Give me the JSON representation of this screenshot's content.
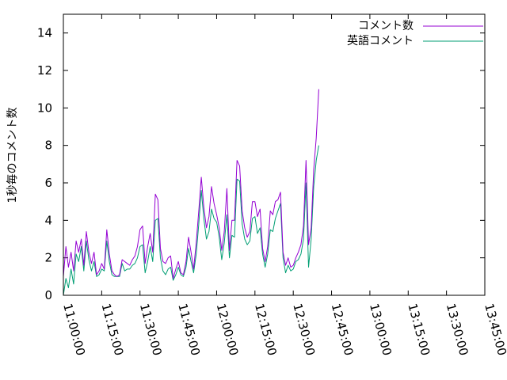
{
  "chart_data": {
    "type": "line",
    "title": "",
    "xlabel": "",
    "ylabel": "1秒毎のコメント数",
    "xlim": [
      "11:00:00",
      "13:45:00"
    ],
    "ylim": [
      0,
      15
    ],
    "grid": false,
    "legend_position": "top-right",
    "x_ticks": [
      "11:00:00",
      "11:15:00",
      "11:30:00",
      "11:45:00",
      "12:00:00",
      "12:15:00",
      "12:30:00",
      "12:45:00",
      "13:00:00",
      "13:15:00",
      "13:30:00",
      "13:45:00"
    ],
    "y_ticks": [
      "0",
      "2",
      "4",
      "6",
      "8",
      "10",
      "12",
      "14"
    ],
    "series": [
      {
        "name": "コメント数",
        "color": "#9400d3",
        "points": [
          [
            "11:00:00",
            1.0
          ],
          [
            "11:01:00",
            2.6
          ],
          [
            "11:02:00",
            1.5
          ],
          [
            "11:03:00",
            2.3
          ],
          [
            "11:04:00",
            1.3
          ],
          [
            "11:05:00",
            2.9
          ],
          [
            "11:06:00",
            2.3
          ],
          [
            "11:07:00",
            3.0
          ],
          [
            "11:08:00",
            1.6
          ],
          [
            "11:09:00",
            3.4
          ],
          [
            "11:10:00",
            2.3
          ],
          [
            "11:11:00",
            1.7
          ],
          [
            "11:12:00",
            2.3
          ],
          [
            "11:13:00",
            1.1
          ],
          [
            "11:14:00",
            1.3
          ],
          [
            "11:15:00",
            1.7
          ],
          [
            "11:16:00",
            1.4
          ],
          [
            "11:17:00",
            3.5
          ],
          [
            "11:18:00",
            2.2
          ],
          [
            "11:19:00",
            1.3
          ],
          [
            "11:20:00",
            1.1
          ],
          [
            "11:21:00",
            1.0
          ],
          [
            "11:22:00",
            1.1
          ],
          [
            "11:23:00",
            1.9
          ],
          [
            "11:24:00",
            1.8
          ],
          [
            "11:25:00",
            1.7
          ],
          [
            "11:26:00",
            1.6
          ],
          [
            "11:27:00",
            1.9
          ],
          [
            "11:28:00",
            2.1
          ],
          [
            "11:29:00",
            2.6
          ],
          [
            "11:30:00",
            3.5
          ],
          [
            "11:31:00",
            3.7
          ],
          [
            "11:32:00",
            1.7
          ],
          [
            "11:33:00",
            2.6
          ],
          [
            "11:34:00",
            3.3
          ],
          [
            "11:35:00",
            2.3
          ],
          [
            "11:36:00",
            5.4
          ],
          [
            "11:37:00",
            5.1
          ],
          [
            "11:38:00",
            2.5
          ],
          [
            "11:39:00",
            1.8
          ],
          [
            "11:40:00",
            1.7
          ],
          [
            "11:41:00",
            2.0
          ],
          [
            "11:42:00",
            2.1
          ],
          [
            "11:43:00",
            0.9
          ],
          [
            "11:44:00",
            1.4
          ],
          [
            "11:45:00",
            1.8
          ],
          [
            "11:46:00",
            1.2
          ],
          [
            "11:47:00",
            1.1
          ],
          [
            "11:48:00",
            1.8
          ],
          [
            "11:49:00",
            3.1
          ],
          [
            "11:50:00",
            2.3
          ],
          [
            "11:51:00",
            1.4
          ],
          [
            "11:52:00",
            2.8
          ],
          [
            "11:53:00",
            4.5
          ],
          [
            "11:54:00",
            6.3
          ],
          [
            "11:55:00",
            4.7
          ],
          [
            "11:56:00",
            3.6
          ],
          [
            "11:57:00",
            4.2
          ],
          [
            "11:58:00",
            5.8
          ],
          [
            "11:59:00",
            4.9
          ],
          [
            "12:00:00",
            4.3
          ],
          [
            "12:01:00",
            3.6
          ],
          [
            "12:02:00",
            2.4
          ],
          [
            "12:03:00",
            3.4
          ],
          [
            "12:04:00",
            5.7
          ],
          [
            "12:05:00",
            2.4
          ],
          [
            "12:06:00",
            4.0
          ],
          [
            "12:07:00",
            4.0
          ],
          [
            "12:08:00",
            7.2
          ],
          [
            "12:09:00",
            6.9
          ],
          [
            "12:10:00",
            4.5
          ],
          [
            "12:11:00",
            3.6
          ],
          [
            "12:12:00",
            3.1
          ],
          [
            "12:13:00",
            3.4
          ],
          [
            "12:14:00",
            5.0
          ],
          [
            "12:15:00",
            5.0
          ],
          [
            "12:16:00",
            4.2
          ],
          [
            "12:17:00",
            4.6
          ],
          [
            "12:18:00",
            2.5
          ],
          [
            "12:19:00",
            1.8
          ],
          [
            "12:20:00",
            2.6
          ],
          [
            "12:21:00",
            4.5
          ],
          [
            "12:22:00",
            4.3
          ],
          [
            "12:23:00",
            5.0
          ],
          [
            "12:24:00",
            5.1
          ],
          [
            "12:25:00",
            5.5
          ],
          [
            "12:26:00",
            2.3
          ],
          [
            "12:27:00",
            1.6
          ],
          [
            "12:28:00",
            2.0
          ],
          [
            "12:29:00",
            1.5
          ],
          [
            "12:30:00",
            1.6
          ],
          [
            "12:31:00",
            2.0
          ],
          [
            "12:32:00",
            2.3
          ],
          [
            "12:33:00",
            2.7
          ],
          [
            "12:34:00",
            3.7
          ],
          [
            "12:35:00",
            7.2
          ],
          [
            "12:36:00",
            2.7
          ],
          [
            "12:37:00",
            3.6
          ],
          [
            "12:38:00",
            6.7
          ],
          [
            "12:39:00",
            8.4
          ],
          [
            "12:40:00",
            11.0
          ]
        ]
      },
      {
        "name": "英語コメント",
        "color": "#009e73",
        "points": [
          [
            "11:00:00",
            0.0
          ],
          [
            "11:01:00",
            0.9
          ],
          [
            "11:02:00",
            0.4
          ],
          [
            "11:03:00",
            1.4
          ],
          [
            "11:04:00",
            0.6
          ],
          [
            "11:05:00",
            2.2
          ],
          [
            "11:06:00",
            1.8
          ],
          [
            "11:07:00",
            2.6
          ],
          [
            "11:08:00",
            1.3
          ],
          [
            "11:09:00",
            2.9
          ],
          [
            "11:10:00",
            1.9
          ],
          [
            "11:11:00",
            1.3
          ],
          [
            "11:12:00",
            1.8
          ],
          [
            "11:13:00",
            1.0
          ],
          [
            "11:14:00",
            1.1
          ],
          [
            "11:15:00",
            1.4
          ],
          [
            "11:16:00",
            1.3
          ],
          [
            "11:17:00",
            2.9
          ],
          [
            "11:18:00",
            1.8
          ],
          [
            "11:19:00",
            1.1
          ],
          [
            "11:20:00",
            1.0
          ],
          [
            "11:21:00",
            1.0
          ],
          [
            "11:22:00",
            1.0
          ],
          [
            "11:23:00",
            1.7
          ],
          [
            "11:24:00",
            1.3
          ],
          [
            "11:25:00",
            1.4
          ],
          [
            "11:26:00",
            1.4
          ],
          [
            "11:27:00",
            1.6
          ],
          [
            "11:28:00",
            1.7
          ],
          [
            "11:29:00",
            2.0
          ],
          [
            "11:30:00",
            2.6
          ],
          [
            "11:31:00",
            2.7
          ],
          [
            "11:32:00",
            1.2
          ],
          [
            "11:33:00",
            1.8
          ],
          [
            "11:34:00",
            2.6
          ],
          [
            "11:35:00",
            1.8
          ],
          [
            "11:36:00",
            4.0
          ],
          [
            "11:37:00",
            4.1
          ],
          [
            "11:38:00",
            2.0
          ],
          [
            "11:39:00",
            1.3
          ],
          [
            "11:40:00",
            1.1
          ],
          [
            "11:41:00",
            1.4
          ],
          [
            "11:42:00",
            1.5
          ],
          [
            "11:43:00",
            0.8
          ],
          [
            "11:44:00",
            1.1
          ],
          [
            "11:45:00",
            1.5
          ],
          [
            "11:46:00",
            1.1
          ],
          [
            "11:47:00",
            1.0
          ],
          [
            "11:48:00",
            1.5
          ],
          [
            "11:49:00",
            2.5
          ],
          [
            "11:50:00",
            1.8
          ],
          [
            "11:51:00",
            1.2
          ],
          [
            "11:52:00",
            2.2
          ],
          [
            "11:53:00",
            3.8
          ],
          [
            "11:54:00",
            5.6
          ],
          [
            "11:55:00",
            4.1
          ],
          [
            "11:56:00",
            3.0
          ],
          [
            "11:57:00",
            3.4
          ],
          [
            "11:58:00",
            4.6
          ],
          [
            "11:59:00",
            4.1
          ],
          [
            "12:00:00",
            3.9
          ],
          [
            "12:01:00",
            3.1
          ],
          [
            "12:02:00",
            1.9
          ],
          [
            "12:03:00",
            2.8
          ],
          [
            "12:04:00",
            4.3
          ],
          [
            "12:05:00",
            2.0
          ],
          [
            "12:06:00",
            3.2
          ],
          [
            "12:07:00",
            3.1
          ],
          [
            "12:08:00",
            6.2
          ],
          [
            "12:09:00",
            6.1
          ],
          [
            "12:10:00",
            3.8
          ],
          [
            "12:11:00",
            3.0
          ],
          [
            "12:12:00",
            2.7
          ],
          [
            "12:13:00",
            2.9
          ],
          [
            "12:14:00",
            4.1
          ],
          [
            "12:15:00",
            4.2
          ],
          [
            "12:16:00",
            3.3
          ],
          [
            "12:17:00",
            3.6
          ],
          [
            "12:18:00",
            2.2
          ],
          [
            "12:19:00",
            1.5
          ],
          [
            "12:20:00",
            2.2
          ],
          [
            "12:21:00",
            3.5
          ],
          [
            "12:22:00",
            3.4
          ],
          [
            "12:23:00",
            4.1
          ],
          [
            "12:24:00",
            4.5
          ],
          [
            "12:25:00",
            4.9
          ],
          [
            "12:26:00",
            2.0
          ],
          [
            "12:27:00",
            1.2
          ],
          [
            "12:28:00",
            1.6
          ],
          [
            "12:29:00",
            1.3
          ],
          [
            "12:30:00",
            1.4
          ],
          [
            "12:31:00",
            1.8
          ],
          [
            "12:32:00",
            1.9
          ],
          [
            "12:33:00",
            2.2
          ],
          [
            "12:34:00",
            3.0
          ],
          [
            "12:35:00",
            6.0
          ],
          [
            "12:36:00",
            1.5
          ],
          [
            "12:37:00",
            3.0
          ],
          [
            "12:38:00",
            5.8
          ],
          [
            "12:39:00",
            7.2
          ],
          [
            "12:40:00",
            8.0
          ]
        ]
      }
    ]
  }
}
